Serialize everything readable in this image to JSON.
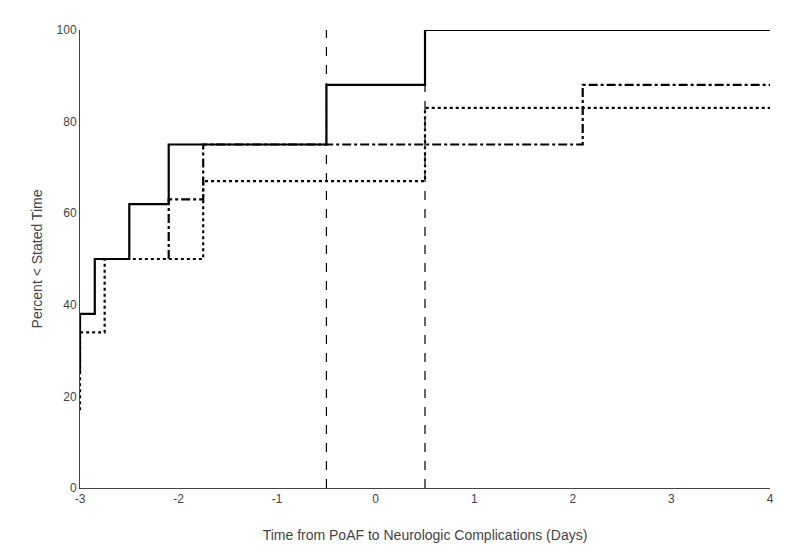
{
  "chart_data": {
    "type": "line",
    "xlabel": "Time from PoAF to Neurologic Complications (Days)",
    "ylabel": "Percent < Stated Time",
    "xlim": [
      -3,
      4
    ],
    "ylim": [
      0,
      100
    ],
    "xticks": [
      -3,
      -2,
      -1,
      0,
      1,
      2,
      3,
      4
    ],
    "yticks": [
      0,
      20,
      40,
      60,
      80,
      100
    ],
    "grid": false,
    "color": "#000000",
    "vlines": [
      -0.5,
      0.5
    ],
    "series": [
      {
        "x": [
          -3,
          -3,
          -2.85,
          -2.85,
          -2.5,
          -2.5,
          -2.1,
          -2.1,
          -0.5,
          -0.5,
          0.5,
          0.5,
          4
        ],
        "values": [
          25,
          38,
          38,
          50,
          50,
          62,
          62,
          75,
          75,
          88,
          88,
          100,
          100
        ],
        "color": "#000000",
        "line_style": "solid"
      },
      {
        "x": [
          -3,
          -3,
          -2.75,
          -2.75,
          -1.75,
          -1.75,
          -0.5,
          -0.5,
          0.5,
          0.5,
          4
        ],
        "values": [
          17,
          34,
          34,
          50,
          50,
          67,
          67,
          67,
          67,
          83,
          83
        ],
        "color": "#000000",
        "line_style": "dot"
      },
      {
        "x": [
          -2.1,
          -2.1,
          -1.75,
          -1.75,
          -0.5,
          -0.5,
          0.5,
          0.5,
          2.1,
          2.1,
          4
        ],
        "values": [
          50,
          63,
          63,
          75,
          75,
          75,
          75,
          75,
          75,
          88,
          88
        ],
        "color": "#000000",
        "line_style": "dashdot"
      }
    ]
  }
}
